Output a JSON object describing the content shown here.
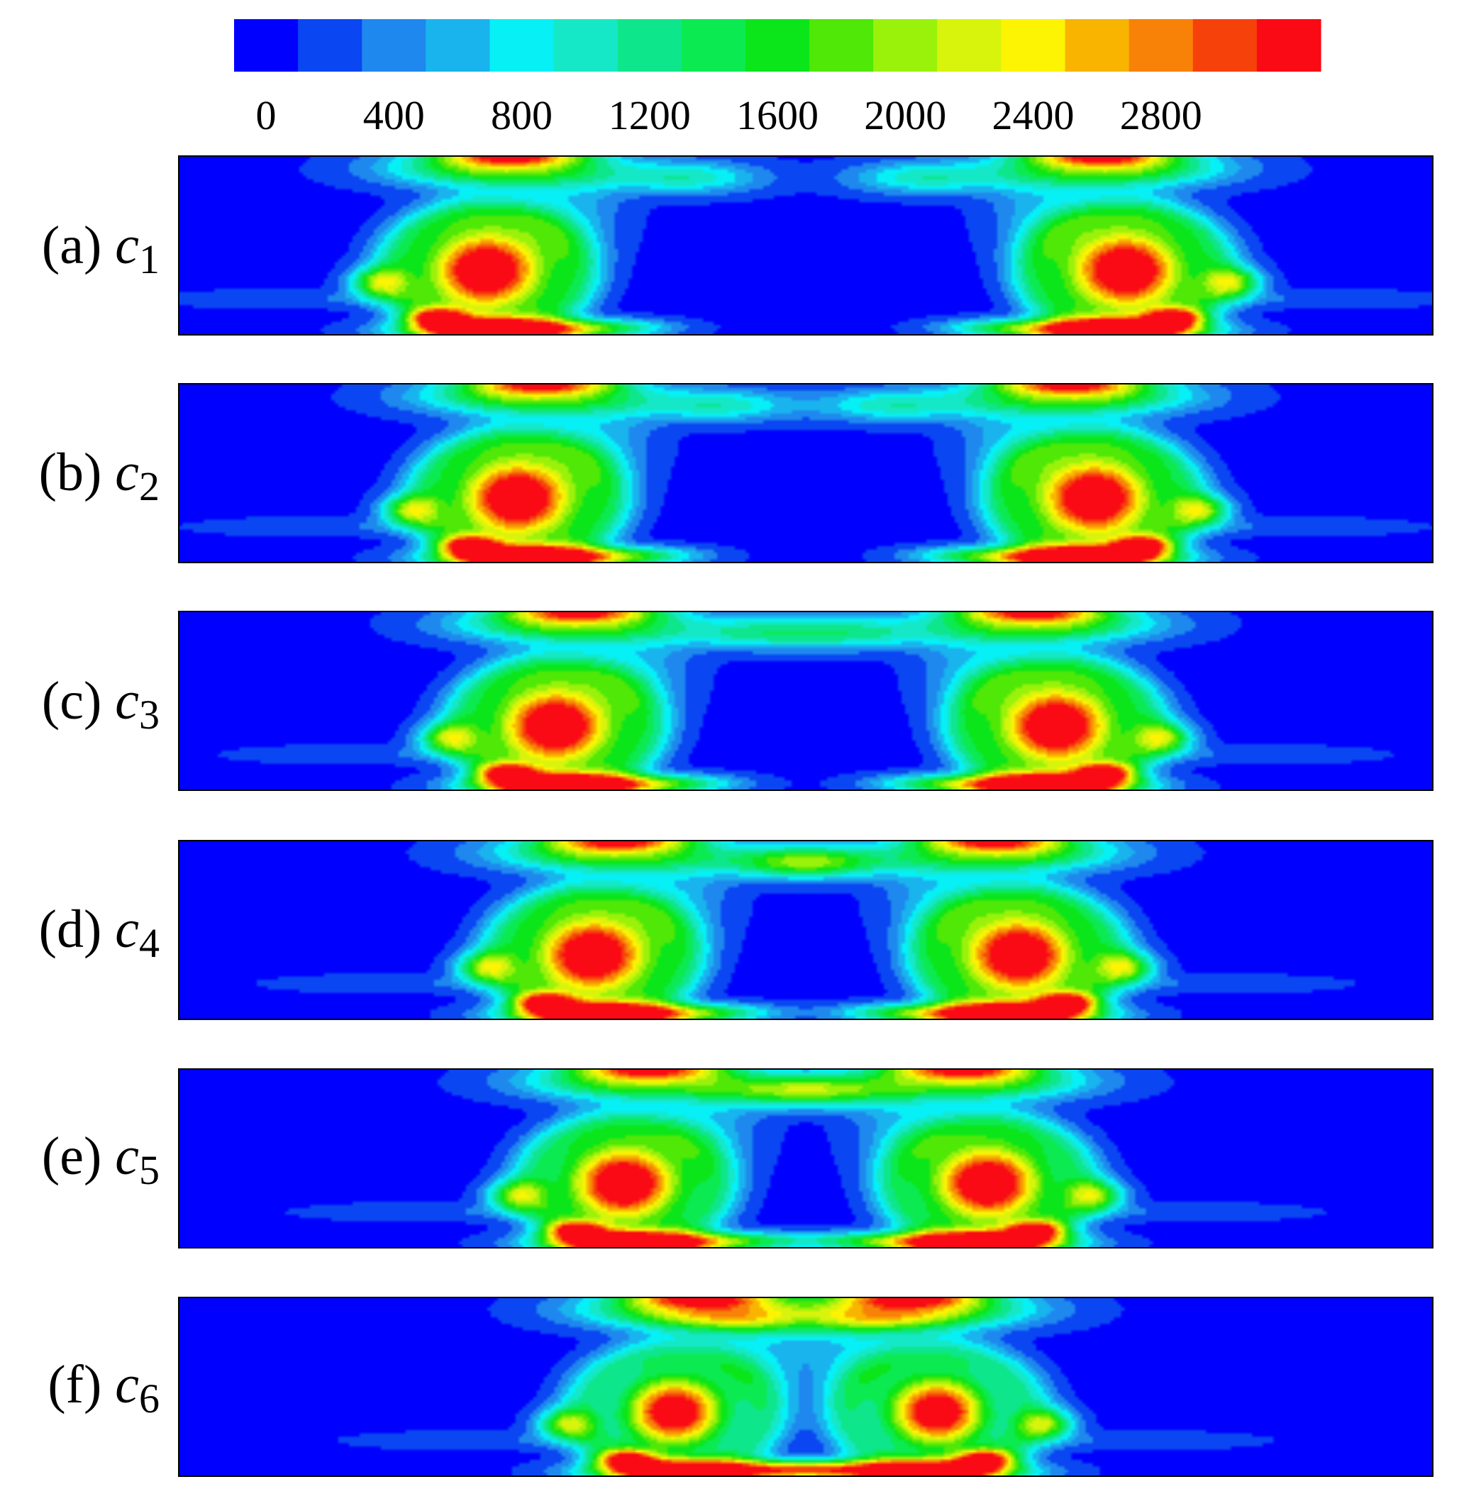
{
  "chart_data": {
    "type": "heatmap",
    "title": "",
    "colorbar": {
      "min": 0,
      "max": 3200,
      "step": 200,
      "tick_labels": [
        "0",
        "400",
        "800",
        "1200",
        "1600",
        "2000",
        "2400",
        "2800"
      ],
      "tick_values": [
        0,
        400,
        800,
        1200,
        1600,
        2000,
        2400,
        2800
      ],
      "colors": [
        "#0000ff",
        "#0a46f2",
        "#1e88ee",
        "#19b4ee",
        "#06f0f6",
        "#15e8c6",
        "#0ee68c",
        "#0cea52",
        "#0be61a",
        "#4fe807",
        "#9af20a",
        "#d8f40c",
        "#fcf403",
        "#f9b400",
        "#f88208",
        "#f6420a",
        "#fa0a14"
      ]
    },
    "panels": [
      {
        "letter": "(a)",
        "var": "c",
        "sub": "1",
        "core_center_x": 0.245,
        "core_strength": 1.0,
        "core_radius": 1.0
      },
      {
        "letter": "(b)",
        "var": "c",
        "sub": "2",
        "core_center_x": 0.27,
        "core_strength": 1.0,
        "core_radius": 1.0
      },
      {
        "letter": "(c)",
        "var": "c",
        "sub": "3",
        "core_center_x": 0.3,
        "core_strength": 1.0,
        "core_radius": 1.0
      },
      {
        "letter": "(d)",
        "var": "c",
        "sub": "4",
        "core_center_x": 0.33,
        "core_strength": 1.0,
        "core_radius": 1.0
      },
      {
        "letter": "(e)",
        "var": "c",
        "sub": "5",
        "core_center_x": 0.355,
        "core_strength": 1.0,
        "core_radius": 0.95
      },
      {
        "letter": "(f)",
        "var": "c",
        "sub": "6",
        "core_center_x": 0.395,
        "core_strength": 0.95,
        "core_radius": 0.85
      }
    ]
  }
}
